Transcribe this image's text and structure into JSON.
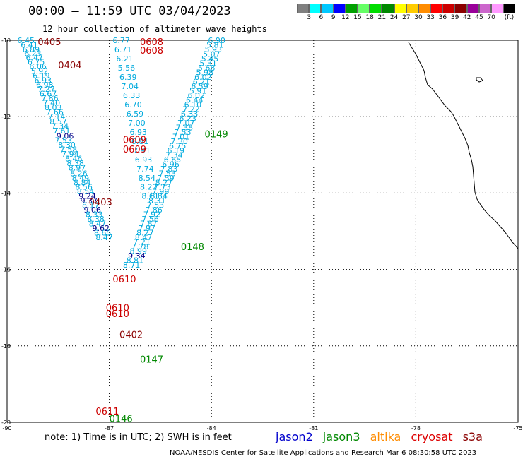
{
  "header": {
    "title": "00:00 – 11:59 UTC 03/04/2023",
    "subtitle": "12 hour collection of altimeter wave heights"
  },
  "colorbar": {
    "colors": [
      "#808080",
      "#00ffff",
      "#00c8ff",
      "#0000ff",
      "#00a000",
      "#66ff66",
      "#00dd00",
      "#008800",
      "#ffff00",
      "#ffcc00",
      "#ff8c00",
      "#ff0000",
      "#cc0000",
      "#8b0000",
      "#990099",
      "#cc66cc",
      "#ff99ff",
      "#000000"
    ],
    "ticks": [
      "3",
      "6",
      "9",
      "12",
      "15",
      "18",
      "21",
      "24",
      "27",
      "30",
      "33",
      "36",
      "39",
      "42",
      "45",
      "70",
      "(ft)"
    ]
  },
  "axes": {
    "lon_labels": [
      "-90",
      "-87",
      "-84",
      "-81",
      "-78",
      "-75"
    ],
    "lat_labels": [
      "-10",
      "-12",
      "-14",
      "-16",
      "-18",
      "-20"
    ],
    "lon_range": [
      -90,
      -75
    ],
    "lat_range": [
      -20,
      -10
    ]
  },
  "track_colors": {
    "jason2": "#0000cc",
    "jason3": "#008800",
    "altika": "#ff8c00",
    "cryosat": "#cc0000",
    "s3a": "#8b0000",
    "swh_light": "#00aadd",
    "swh_dark": "#000088"
  },
  "tracks": [
    {
      "label": "0405",
      "satellite": "s3a",
      "lon": -89.1,
      "lat": -10.04
    },
    {
      "label": "0404",
      "satellite": "s3a",
      "lon": -88.5,
      "lat": -10.65
    },
    {
      "label": "0403",
      "satellite": "s3a",
      "lon": -87.6,
      "lat": -14.23
    },
    {
      "label": "0402",
      "satellite": "s3a",
      "lon": -86.7,
      "lat": -17.7
    },
    {
      "label": "0608",
      "satellite": "cryosat",
      "lon": -86.1,
      "lat": -10.04
    },
    {
      "label": "0608",
      "satellite": "cryosat",
      "lon": -86.1,
      "lat": -10.26
    },
    {
      "label": "0609",
      "satellite": "cryosat",
      "lon": -86.6,
      "lat": -12.6
    },
    {
      "label": "0609",
      "satellite": "cryosat",
      "lon": -86.6,
      "lat": -12.85
    },
    {
      "label": "0610",
      "satellite": "cryosat",
      "lon": -86.9,
      "lat": -16.25
    },
    {
      "label": "0610",
      "satellite": "cryosat",
      "lon": -87.1,
      "lat": -17.0
    },
    {
      "label": "0610",
      "satellite": "cryosat",
      "lon": -87.1,
      "lat": -17.15
    },
    {
      "label": "0611",
      "satellite": "cryosat",
      "lon": -87.4,
      "lat": -19.7
    },
    {
      "label": "0149",
      "satellite": "jason3",
      "lon": -84.2,
      "lat": -12.45
    },
    {
      "label": "0148",
      "satellite": "jason3",
      "lon": -84.9,
      "lat": -15.4
    },
    {
      "label": "0147",
      "satellite": "jason3",
      "lon": -86.1,
      "lat": -18.35
    },
    {
      "label": "0146",
      "satellite": "jason3",
      "lon": -87.0,
      "lat": -19.9
    }
  ],
  "swh_points": [
    {
      "v": "6.45",
      "lon": -89.7,
      "lat": -10.0,
      "c": "light"
    },
    {
      "v": "6.41",
      "lon": -89.6,
      "lat": -10.12,
      "c": "light"
    },
    {
      "v": "6.89",
      "lon": -89.55,
      "lat": -10.24,
      "c": "light"
    },
    {
      "v": "6.23",
      "lon": -89.5,
      "lat": -10.34,
      "c": "light"
    },
    {
      "v": "6.47",
      "lon": -89.45,
      "lat": -10.45,
      "c": "light"
    },
    {
      "v": "6.75",
      "lon": -89.4,
      "lat": -10.56,
      "c": "light"
    },
    {
      "v": "6.06",
      "lon": -89.35,
      "lat": -10.68,
      "c": "light"
    },
    {
      "v": "5.92",
      "lon": -89.3,
      "lat": -10.8,
      "c": "light"
    },
    {
      "v": "6.19",
      "lon": -89.25,
      "lat": -10.92,
      "c": "light"
    },
    {
      "v": "6.93",
      "lon": -89.2,
      "lat": -11.04,
      "c": "light"
    },
    {
      "v": "6.98",
      "lon": -89.15,
      "lat": -11.16,
      "c": "light"
    },
    {
      "v": "7.27",
      "lon": -89.1,
      "lat": -11.28,
      "c": "light"
    },
    {
      "v": "6.67",
      "lon": -89.05,
      "lat": -11.4,
      "c": "light"
    },
    {
      "v": "7.86",
      "lon": -89.0,
      "lat": -11.52,
      "c": "light"
    },
    {
      "v": "7.40",
      "lon": -88.95,
      "lat": -11.64,
      "c": "light"
    },
    {
      "v": "8.03",
      "lon": -88.9,
      "lat": -11.76,
      "c": "light"
    },
    {
      "v": "7.66",
      "lon": -88.85,
      "lat": -11.88,
      "c": "light"
    },
    {
      "v": "7.14",
      "lon": -88.8,
      "lat": -12.0,
      "c": "light"
    },
    {
      "v": "8.57",
      "lon": -88.75,
      "lat": -12.13,
      "c": "light"
    },
    {
      "v": "7.34",
      "lon": -88.7,
      "lat": -12.25,
      "c": "light"
    },
    {
      "v": "7.61",
      "lon": -88.65,
      "lat": -12.37,
      "c": "light"
    },
    {
      "v": "9.06",
      "lon": -88.55,
      "lat": -12.5,
      "c": "dark"
    },
    {
      "v": "7.53",
      "lon": -88.6,
      "lat": -12.62,
      "c": "light"
    },
    {
      "v": "8.30",
      "lon": -88.5,
      "lat": -12.74,
      "c": "light"
    },
    {
      "v": "7.58",
      "lon": -88.45,
      "lat": -12.86,
      "c": "light"
    },
    {
      "v": "7.94",
      "lon": -88.4,
      "lat": -12.98,
      "c": "light"
    },
    {
      "v": "8.46",
      "lon": -88.3,
      "lat": -13.1,
      "c": "light"
    },
    {
      "v": "8.38",
      "lon": -88.25,
      "lat": -13.22,
      "c": "light"
    },
    {
      "v": "8.97",
      "lon": -88.2,
      "lat": -13.34,
      "c": "light"
    },
    {
      "v": "8.26",
      "lon": -88.15,
      "lat": -13.48,
      "c": "light"
    },
    {
      "v": "8.49",
      "lon": -88.1,
      "lat": -13.6,
      "c": "light"
    },
    {
      "v": "8.84",
      "lon": -88.05,
      "lat": -13.72,
      "c": "light"
    },
    {
      "v": "8.56",
      "lon": -88.0,
      "lat": -13.84,
      "c": "light"
    },
    {
      "v": "8.54",
      "lon": -87.95,
      "lat": -13.96,
      "c": "light"
    },
    {
      "v": "9.24",
      "lon": -87.9,
      "lat": -14.08,
      "c": "dark"
    },
    {
      "v": "9.37",
      "lon": -87.85,
      "lat": -14.2,
      "c": "dark"
    },
    {
      "v": "8.17",
      "lon": -87.8,
      "lat": -14.32,
      "c": "light"
    },
    {
      "v": "9.06",
      "lon": -87.75,
      "lat": -14.44,
      "c": "dark"
    },
    {
      "v": "8.33",
      "lon": -87.7,
      "lat": -14.56,
      "c": "light"
    },
    {
      "v": "8.38",
      "lon": -87.65,
      "lat": -14.68,
      "c": "light"
    },
    {
      "v": "8.47",
      "lon": -87.6,
      "lat": -14.8,
      "c": "light"
    },
    {
      "v": "9.62",
      "lon": -87.5,
      "lat": -14.92,
      "c": "dark"
    },
    {
      "v": "8.65",
      "lon": -87.45,
      "lat": -15.04,
      "c": "light"
    },
    {
      "v": "8.47",
      "lon": -87.4,
      "lat": -15.16,
      "c": "light"
    },
    {
      "v": "6.77",
      "lon": -86.9,
      "lat": -10.0,
      "c": "light"
    },
    {
      "v": "6.71",
      "lon": -86.85,
      "lat": -10.24,
      "c": "light"
    },
    {
      "v": "6.21",
      "lon": -86.8,
      "lat": -10.48,
      "c": "light"
    },
    {
      "v": "5.56",
      "lon": -86.75,
      "lat": -10.72,
      "c": "light"
    },
    {
      "v": "6.39",
      "lon": -86.7,
      "lat": -10.96,
      "c": "light"
    },
    {
      "v": "7.04",
      "lon": -86.65,
      "lat": -11.2,
      "c": "light"
    },
    {
      "v": "6.33",
      "lon": -86.6,
      "lat": -11.44,
      "c": "light"
    },
    {
      "v": "6.70",
      "lon": -86.55,
      "lat": -11.68,
      "c": "light"
    },
    {
      "v": "6.59",
      "lon": -86.5,
      "lat": -11.92,
      "c": "light"
    },
    {
      "v": "7.00",
      "lon": -86.45,
      "lat": -12.16,
      "c": "light"
    },
    {
      "v": "6.93",
      "lon": -86.4,
      "lat": -12.4,
      "c": "light"
    },
    {
      "v": "6.81",
      "lon": -86.35,
      "lat": -12.64,
      "c": "light"
    },
    {
      "v": "7.91",
      "lon": -86.3,
      "lat": -12.88,
      "c": "light"
    },
    {
      "v": "6.93",
      "lon": -86.25,
      "lat": -13.12,
      "c": "light"
    },
    {
      "v": "7.74",
      "lon": -86.2,
      "lat": -13.36,
      "c": "light"
    },
    {
      "v": "8.54",
      "lon": -86.15,
      "lat": -13.6,
      "c": "light"
    },
    {
      "v": "8.22",
      "lon": -86.1,
      "lat": -13.84,
      "c": "light"
    },
    {
      "v": "8.61",
      "lon": -86.05,
      "lat": -14.08,
      "c": "light"
    },
    {
      "v": "6.90",
      "lon": -84.1,
      "lat": -10.0,
      "c": "light"
    },
    {
      "v": "5.81",
      "lon": -84.15,
      "lat": -10.12,
      "c": "light"
    },
    {
      "v": "5.93",
      "lon": -84.2,
      "lat": -10.24,
      "c": "light"
    },
    {
      "v": "5.07",
      "lon": -84.25,
      "lat": -10.36,
      "c": "light"
    },
    {
      "v": "5.45",
      "lon": -84.3,
      "lat": -10.48,
      "c": "light"
    },
    {
      "v": "5.31",
      "lon": -84.35,
      "lat": -10.6,
      "c": "light"
    },
    {
      "v": "5.68",
      "lon": -84.4,
      "lat": -10.72,
      "c": "light"
    },
    {
      "v": "5.98",
      "lon": -84.45,
      "lat": -10.84,
      "c": "light"
    },
    {
      "v": "6.02",
      "lon": -84.5,
      "lat": -10.96,
      "c": "light"
    },
    {
      "v": "6.21",
      "lon": -84.55,
      "lat": -11.08,
      "c": "light"
    },
    {
      "v": "6.59",
      "lon": -84.6,
      "lat": -11.2,
      "c": "light"
    },
    {
      "v": "5.91",
      "lon": -84.65,
      "lat": -11.32,
      "c": "light"
    },
    {
      "v": "6.02",
      "lon": -84.7,
      "lat": -11.44,
      "c": "light"
    },
    {
      "v": "6.44",
      "lon": -84.75,
      "lat": -11.56,
      "c": "light"
    },
    {
      "v": "6.10",
      "lon": -84.8,
      "lat": -11.68,
      "c": "light"
    },
    {
      "v": "7.22",
      "lon": -84.85,
      "lat": -11.8,
      "c": "light"
    },
    {
      "v": "6.33",
      "lon": -84.9,
      "lat": -11.92,
      "c": "light"
    },
    {
      "v": "6.23",
      "lon": -84.95,
      "lat": -12.04,
      "c": "light"
    },
    {
      "v": "7.07",
      "lon": -85.0,
      "lat": -12.16,
      "c": "light"
    },
    {
      "v": "7.38",
      "lon": -85.05,
      "lat": -12.28,
      "c": "light"
    },
    {
      "v": "7.53",
      "lon": -85.1,
      "lat": -12.4,
      "c": "light"
    },
    {
      "v": "7.01",
      "lon": -85.15,
      "lat": -12.52,
      "c": "light"
    },
    {
      "v": "7.30",
      "lon": -85.2,
      "lat": -12.64,
      "c": "light"
    },
    {
      "v": "6.75",
      "lon": -85.25,
      "lat": -12.76,
      "c": "light"
    },
    {
      "v": "6.19",
      "lon": -85.3,
      "lat": -12.88,
      "c": "light"
    },
    {
      "v": "7.34",
      "lon": -85.35,
      "lat": -13.0,
      "c": "light"
    },
    {
      "v": "6.65",
      "lon": -85.4,
      "lat": -13.12,
      "c": "light"
    },
    {
      "v": "6.96",
      "lon": -85.45,
      "lat": -13.24,
      "c": "light"
    },
    {
      "v": "7.83",
      "lon": -85.5,
      "lat": -13.36,
      "c": "light"
    },
    {
      "v": "7.53",
      "lon": -85.55,
      "lat": -13.48,
      "c": "light"
    },
    {
      "v": "7.59",
      "lon": -85.6,
      "lat": -13.6,
      "c": "light"
    },
    {
      "v": "8.27",
      "lon": -85.65,
      "lat": -13.72,
      "c": "light"
    },
    {
      "v": "7.73",
      "lon": -85.7,
      "lat": -13.84,
      "c": "light"
    },
    {
      "v": "7.99",
      "lon": -85.75,
      "lat": -13.96,
      "c": "light"
    },
    {
      "v": "8.84",
      "lon": -85.8,
      "lat": -14.08,
      "c": "light"
    },
    {
      "v": "8.31",
      "lon": -85.85,
      "lat": -14.2,
      "c": "light"
    },
    {
      "v": "7.53",
      "lon": -85.9,
      "lat": -14.32,
      "c": "light"
    },
    {
      "v": "7.86",
      "lon": -85.95,
      "lat": -14.44,
      "c": "light"
    },
    {
      "v": "7.92",
      "lon": -86.0,
      "lat": -14.56,
      "c": "light"
    },
    {
      "v": "7.56",
      "lon": -86.05,
      "lat": -14.68,
      "c": "light"
    },
    {
      "v": "7.87",
      "lon": -86.1,
      "lat": -14.8,
      "c": "light"
    },
    {
      "v": "7.97",
      "lon": -86.15,
      "lat": -14.92,
      "c": "light"
    },
    {
      "v": "8.27",
      "lon": -86.2,
      "lat": -15.04,
      "c": "light"
    },
    {
      "v": "8.47",
      "lon": -86.25,
      "lat": -15.16,
      "c": "light"
    },
    {
      "v": "7.21",
      "lon": -86.3,
      "lat": -15.28,
      "c": "light"
    },
    {
      "v": "7.78",
      "lon": -86.35,
      "lat": -15.4,
      "c": "light"
    },
    {
      "v": "8.99",
      "lon": -86.4,
      "lat": -15.52,
      "c": "light"
    },
    {
      "v": "9.34",
      "lon": -86.45,
      "lat": -15.64,
      "c": "dark"
    },
    {
      "v": "8.81",
      "lon": -86.5,
      "lat": -15.76,
      "c": "light"
    },
    {
      "v": "8.71",
      "lon": -86.6,
      "lat": -15.88,
      "c": "light"
    }
  ],
  "note": "note: 1) Time is in UTC; 2) SWH is in feet",
  "legend": [
    "jason2",
    "jason3",
    "altika",
    "cryosat",
    "s3a"
  ],
  "credit": "NOAA/NESDIS Center for Satellite Applications and Research   Mar  6 08:30:58 UTC 2023"
}
